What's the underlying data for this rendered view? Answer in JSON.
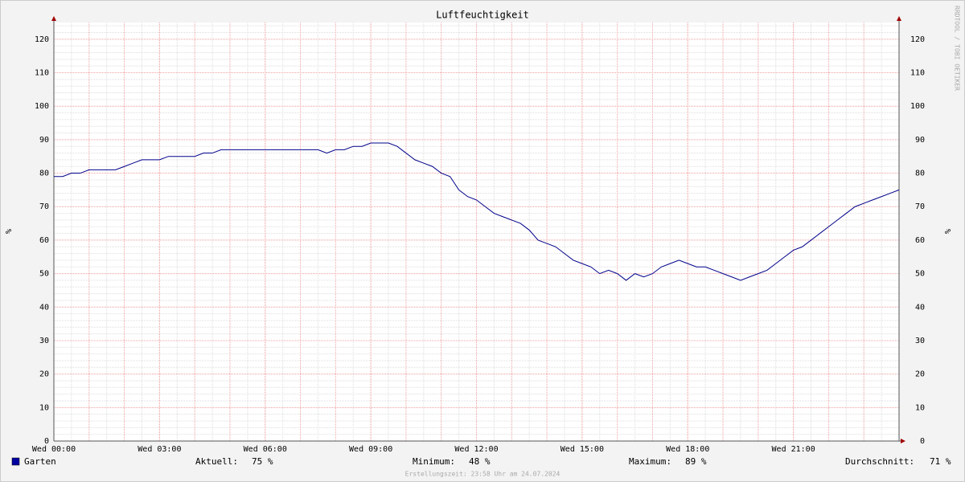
{
  "chart_data": {
    "type": "line",
    "title": "Luftfeuchtigkeit",
    "y_label": "%",
    "watermark": "RRDTOOL / TOBI OETIKER",
    "footer": "Erstellungszeit: 23:58 Uhr am 24.07.2024",
    "xlim": [
      0,
      24
    ],
    "xticks": [
      {
        "value": 0,
        "label": "Wed 00:00"
      },
      {
        "value": 3,
        "label": "Wed 03:00"
      },
      {
        "value": 6,
        "label": "Wed 06:00"
      },
      {
        "value": 9,
        "label": "Wed 09:00"
      },
      {
        "value": 12,
        "label": "Wed 12:00"
      },
      {
        "value": 15,
        "label": "Wed 15:00"
      },
      {
        "value": 18,
        "label": "Wed 18:00"
      },
      {
        "value": 21,
        "label": "Wed 21:00"
      }
    ],
    "ylim": [
      0,
      125
    ],
    "yticks": [
      0,
      10,
      20,
      30,
      40,
      50,
      60,
      70,
      80,
      90,
      100,
      110,
      120
    ],
    "grid": true,
    "x": [
      0,
      0.25,
      0.5,
      0.75,
      1,
      1.25,
      1.5,
      1.75,
      2,
      2.25,
      2.5,
      2.75,
      3,
      3.25,
      3.5,
      3.75,
      4,
      4.25,
      4.5,
      4.75,
      5,
      5.25,
      5.5,
      5.75,
      6,
      6.25,
      6.5,
      6.75,
      7,
      7.25,
      7.5,
      7.75,
      8,
      8.25,
      8.5,
      8.75,
      9,
      9.25,
      9.5,
      9.75,
      10,
      10.25,
      10.5,
      10.75,
      11,
      11.25,
      11.5,
      11.75,
      12,
      12.25,
      12.5,
      12.75,
      13,
      13.25,
      13.5,
      13.75,
      14,
      14.25,
      14.5,
      14.75,
      15,
      15.25,
      15.5,
      15.75,
      16,
      16.25,
      16.5,
      16.75,
      17,
      17.25,
      17.5,
      17.75,
      18,
      18.25,
      18.5,
      18.75,
      19,
      19.25,
      19.5,
      19.75,
      20,
      20.25,
      20.5,
      20.75,
      21,
      21.25,
      21.5,
      21.75,
      22,
      22.25,
      22.5,
      22.75,
      23,
      23.25,
      23.5,
      23.75,
      24
    ],
    "series": [
      {
        "name": "Garten",
        "color": "#00008b",
        "swatch_color": "#0000a0",
        "values": [
          79,
          79,
          80,
          80,
          81,
          81,
          81,
          81,
          82,
          83,
          84,
          84,
          84,
          85,
          85,
          85,
          85,
          86,
          86,
          87,
          87,
          87,
          87,
          87,
          87,
          87,
          87,
          87,
          87,
          87,
          87,
          86,
          87,
          87,
          88,
          88,
          89,
          89,
          89,
          88,
          86,
          84,
          83,
          82,
          80,
          79,
          75,
          73,
          72,
          70,
          68,
          67,
          66,
          65,
          63,
          60,
          59,
          58,
          56,
          54,
          53,
          52,
          50,
          51,
          50,
          48,
          50,
          49,
          50,
          52,
          53,
          54,
          53,
          52,
          52,
          51,
          50,
          49,
          48,
          49,
          50,
          51,
          53,
          55,
          57,
          58,
          60,
          62,
          64,
          66,
          68,
          70,
          71,
          72,
          73,
          74,
          75
        ]
      }
    ],
    "stats": [
      {
        "label": "Aktuell:",
        "value": "75 %"
      },
      {
        "label": "Minimum:",
        "value": "48 %"
      },
      {
        "label": "Maximum:",
        "value": "89 %"
      },
      {
        "label": "Durchschnitt:",
        "value": "71 %"
      }
    ]
  }
}
